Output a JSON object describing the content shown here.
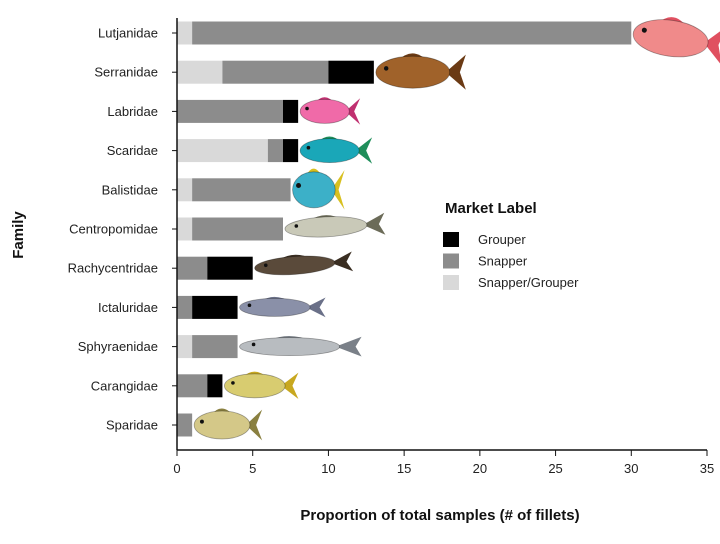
{
  "chart_data": {
    "type": "bar",
    "orientation": "horizontal",
    "stacked": true,
    "xlabel": "Proportion of total samples (# of fillets)",
    "ylabel": "Family",
    "xlim": [
      0,
      35
    ],
    "xticks": [
      0,
      5,
      10,
      15,
      20,
      25,
      30,
      35
    ],
    "categories": [
      "Lutjanidae",
      "Serranidae",
      "Labridae",
      "Scaridae",
      "Balistidae",
      "Centropomidae",
      "Rachycentridae",
      "Ictaluridae",
      "Sphyraenidae",
      "Carangidae",
      "Sparidae"
    ],
    "series": [
      {
        "name": "Snapper/Grouper",
        "color": "#d9d9d9",
        "values": [
          1,
          3,
          0,
          6,
          1,
          1,
          0,
          0,
          1,
          0,
          0
        ]
      },
      {
        "name": "Snapper",
        "color": "#8c8c8c",
        "values": [
          29,
          7,
          7,
          1,
          6.5,
          6,
          2,
          1,
          3,
          2,
          1
        ]
      },
      {
        "name": "Grouper",
        "color": "#000000",
        "values": [
          0,
          3,
          1,
          1,
          0,
          0,
          3,
          3,
          0,
          1,
          0
        ]
      }
    ],
    "legend": {
      "title": "Market Label",
      "position": "center-right",
      "order": [
        "Grouper",
        "Snapper",
        "Snapper/Grouper"
      ]
    },
    "grid": false,
    "fish_icons": [
      "red-snapper-icon",
      "grouper-icon",
      "hogfish-icon",
      "parrotfish-icon",
      "triggerfish-icon",
      "snook-icon",
      "cobia-icon",
      "catfish-icon",
      "barracuda-icon",
      "jack-icon",
      "porgy-icon"
    ]
  }
}
